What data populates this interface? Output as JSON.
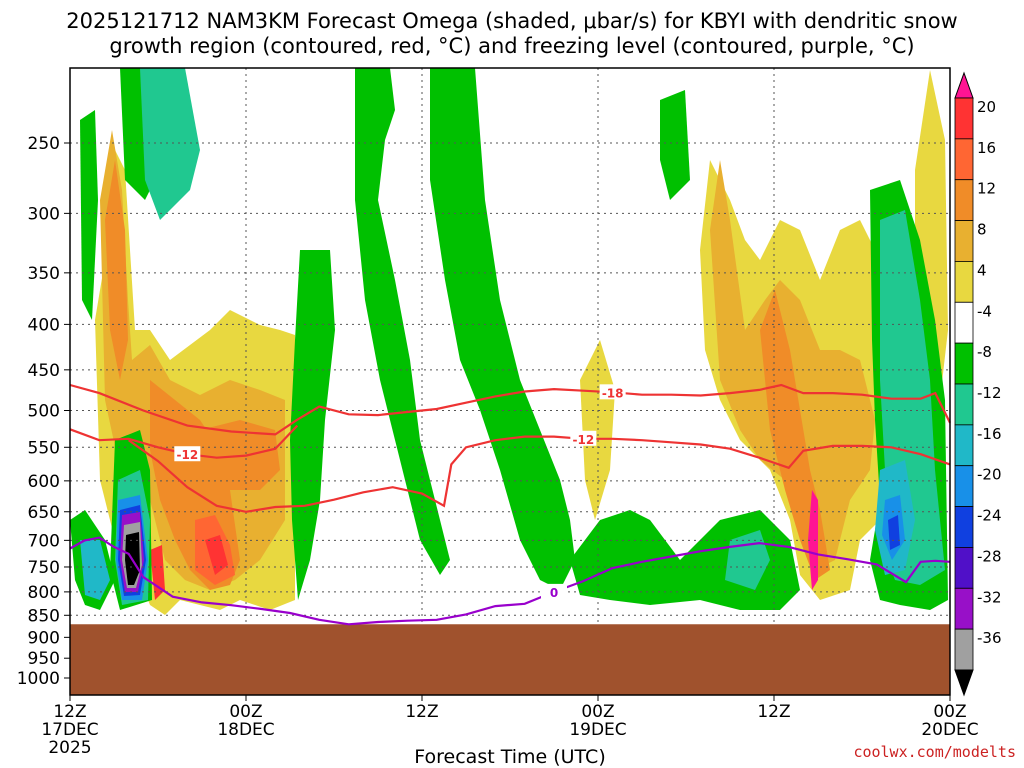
{
  "title_line1": "2025121712 NAM3KM Forecast Omega (shaded, μbar/s) for KBYI with dendritic snow",
  "title_line2": "growth region (contoured, red, °C) and freezing level (contoured, purple, °C)",
  "credit": "coolwx.com/modelts",
  "colors": {
    "ground": "#a0522d",
    "isotherm_red": "#ee3333",
    "freezing_purple": "#9900cc",
    "grid": "#888888"
  },
  "chart_data": {
    "type": "heatmap",
    "xlabel": "Forecast Time (UTC)",
    "ylabel": "",
    "x_ticks": [
      {
        "top": "12Z",
        "mid": "17DEC",
        "bot": "2025",
        "hour": 0
      },
      {
        "top": "00Z",
        "mid": "18DEC",
        "bot": "",
        "hour": 12
      },
      {
        "top": "12Z",
        "mid": "",
        "bot": "",
        "hour": 24
      },
      {
        "top": "00Z",
        "mid": "19DEC",
        "bot": "",
        "hour": 36
      },
      {
        "top": "12Z",
        "mid": "",
        "bot": "",
        "hour": 48
      },
      {
        "top": "00Z",
        "mid": "20DEC",
        "bot": "",
        "hour": 60
      }
    ],
    "x_range_hours": [
      0,
      60
    ],
    "y_ticks": [
      250,
      300,
      350,
      400,
      450,
      500,
      550,
      600,
      650,
      700,
      750,
      800,
      850,
      900,
      950,
      1000
    ],
    "y_range_hpa": [
      200,
      1030
    ],
    "colorbar": {
      "labels": [
        "20",
        "16",
        "12",
        "8",
        "4",
        "-4",
        "-8",
        "-12",
        "-16",
        "-20",
        "-24",
        "-28",
        "-32",
        "-36"
      ],
      "colors": [
        "#ff1493",
        "#ff3333",
        "#ff6633",
        "#f08c28",
        "#e8b030",
        "#e8d840",
        "#ffffff",
        "#00c000",
        "#20c890",
        "#20b8c8",
        "#1890e8",
        "#1040e0",
        "#5010c8",
        "#9810c8",
        "#a0a0a0",
        "#000000"
      ]
    },
    "ground_level_hpa": 870,
    "contours": [
      {
        "label": "-18",
        "color": "red",
        "points": [
          [
            0,
            468
          ],
          [
            2,
            478
          ],
          [
            5,
            500
          ],
          [
            8,
            520
          ],
          [
            11,
            528
          ],
          [
            14,
            532
          ],
          [
            15.5,
            512
          ],
          [
            17,
            495
          ],
          [
            19,
            505
          ],
          [
            21,
            506
          ],
          [
            23,
            502
          ],
          [
            25,
            498
          ],
          [
            27,
            490
          ],
          [
            29,
            482
          ],
          [
            31,
            476
          ],
          [
            33,
            473
          ],
          [
            35,
            475
          ],
          [
            37,
            477
          ],
          [
            39,
            480
          ],
          [
            41,
            480
          ],
          [
            43,
            481
          ],
          [
            45,
            478
          ],
          [
            47,
            474
          ],
          [
            48.5,
            468
          ],
          [
            50,
            478
          ],
          [
            52,
            478
          ],
          [
            54,
            480
          ],
          [
            56,
            485
          ],
          [
            58,
            485
          ],
          [
            59,
            478
          ],
          [
            60,
            516
          ]
        ]
      },
      {
        "label": "-12",
        "color": "red",
        "points": [
          [
            0,
            525
          ],
          [
            2,
            540
          ],
          [
            4,
            538
          ],
          [
            6,
            550
          ],
          [
            8,
            560
          ],
          [
            10,
            565
          ],
          [
            12,
            562
          ],
          [
            14,
            552
          ],
          [
            15.5,
            520
          ]
        ]
      },
      {
        "label": "-12",
        "color": "red",
        "points": [
          [
            4,
            540
          ],
          [
            6,
            570
          ],
          [
            8,
            610
          ],
          [
            10,
            640
          ],
          [
            12,
            650
          ],
          [
            14,
            642
          ],
          [
            16,
            640
          ],
          [
            18,
            630
          ],
          [
            20,
            618
          ],
          [
            22,
            610
          ],
          [
            24,
            620
          ],
          [
            25.5,
            640
          ],
          [
            26,
            575
          ],
          [
            27,
            550
          ],
          [
            29,
            540
          ],
          [
            31,
            535
          ],
          [
            33,
            535
          ],
          [
            35,
            538
          ],
          [
            37,
            538
          ],
          [
            39,
            540
          ],
          [
            41,
            543
          ],
          [
            43,
            546
          ],
          [
            45,
            552
          ],
          [
            47,
            565
          ],
          [
            49,
            580
          ],
          [
            50,
            555
          ],
          [
            52,
            548
          ],
          [
            54,
            548
          ],
          [
            56,
            550
          ],
          [
            58,
            560
          ],
          [
            60,
            575
          ]
        ]
      },
      {
        "label": "0",
        "color": "purple",
        "points": [
          [
            0,
            715
          ],
          [
            1,
            700
          ],
          [
            2,
            695
          ],
          [
            3,
            712
          ],
          [
            4,
            725
          ],
          [
            5,
            770
          ],
          [
            7,
            810
          ],
          [
            9,
            822
          ],
          [
            11,
            828
          ],
          [
            13,
            836
          ],
          [
            15,
            845
          ],
          [
            17,
            860
          ],
          [
            19,
            870
          ],
          [
            21,
            865
          ],
          [
            23,
            862
          ],
          [
            25,
            860
          ],
          [
            27,
            848
          ],
          [
            29,
            830
          ],
          [
            31,
            825
          ],
          [
            33,
            800
          ],
          [
            35,
            778
          ],
          [
            37,
            752
          ],
          [
            39,
            740
          ],
          [
            41,
            730
          ],
          [
            43,
            720
          ],
          [
            45,
            712
          ],
          [
            47,
            705
          ],
          [
            49,
            712
          ],
          [
            51,
            726
          ],
          [
            53,
            735
          ],
          [
            55,
            745
          ],
          [
            57,
            780
          ],
          [
            58,
            740
          ],
          [
            59,
            738
          ],
          [
            60,
            740
          ]
        ]
      }
    ]
  },
  "axis_title": "Forecast Time (UTC)"
}
